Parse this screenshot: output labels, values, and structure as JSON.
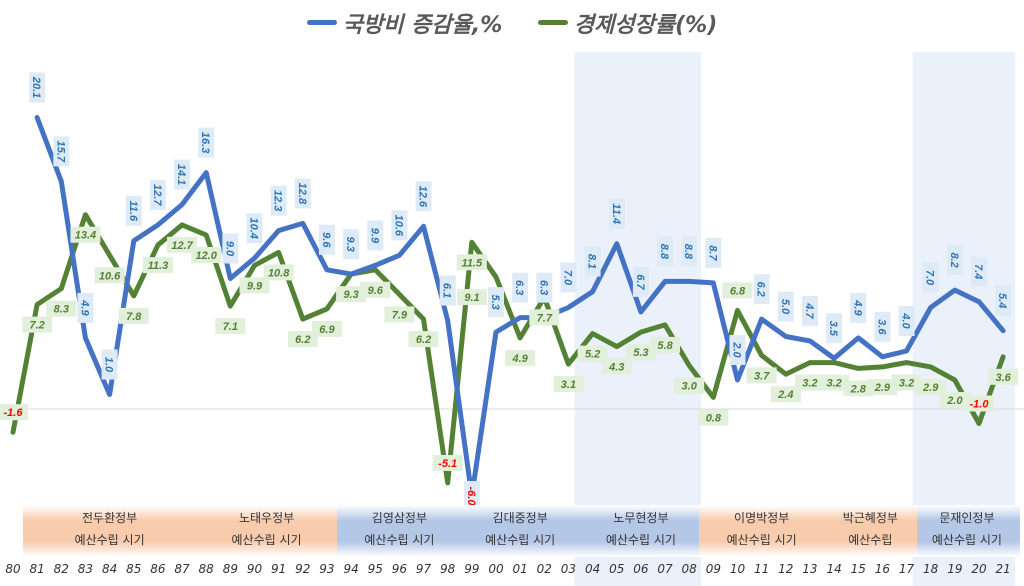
{
  "chart_data": {
    "type": "line",
    "x": [
      "80",
      "81",
      "82",
      "83",
      "84",
      "85",
      "86",
      "87",
      "88",
      "89",
      "90",
      "91",
      "92",
      "93",
      "94",
      "95",
      "96",
      "97",
      "98",
      "99",
      "00",
      "01",
      "02",
      "03",
      "04",
      "05",
      "06",
      "07",
      "08",
      "09",
      "10",
      "11",
      "12",
      "13",
      "14",
      "15",
      "16",
      "17",
      "18",
      "19",
      "20",
      "21"
    ],
    "series": [
      {
        "name": "국방비 증감율,%",
        "color": "#4472C4",
        "values": [
          null,
          20.1,
          15.7,
          4.9,
          1.0,
          11.6,
          12.7,
          14.1,
          16.3,
          9.0,
          10.4,
          12.3,
          12.8,
          9.6,
          9.3,
          9.9,
          10.6,
          12.6,
          6.1,
          -6.0,
          5.3,
          6.3,
          6.3,
          7.0,
          8.1,
          11.4,
          6.7,
          8.8,
          8.8,
          8.7,
          2.0,
          6.2,
          5.0,
          4.7,
          3.5,
          4.9,
          3.6,
          4.0,
          7.0,
          8.2,
          7.4,
          5.4
        ]
      },
      {
        "name": "경제성장률(%)",
        "color": "#548235",
        "values": [
          -1.6,
          7.2,
          8.3,
          13.4,
          10.6,
          7.8,
          11.3,
          12.7,
          12.0,
          7.1,
          9.9,
          10.8,
          6.2,
          6.9,
          9.3,
          9.6,
          7.9,
          6.2,
          -5.1,
          11.5,
          9.1,
          4.9,
          7.7,
          3.1,
          5.2,
          4.3,
          5.3,
          5.8,
          3.0,
          0.8,
          6.8,
          3.7,
          2.4,
          3.2,
          3.2,
          2.8,
          2.9,
          3.2,
          2.9,
          2.0,
          -1.0,
          3.6
        ]
      }
    ],
    "highlighted_years": [
      [
        "04",
        "08"
      ],
      [
        "18",
        "21"
      ]
    ],
    "negative_label_color": "#FF0000",
    "grid": false,
    "legend": "top"
  },
  "periods": [
    {
      "name": "전두환정부",
      "sub": "예산수립 시기",
      "from": "81",
      "to": "87",
      "color": "orange"
    },
    {
      "name": "노태우정부",
      "sub": "예산수립 시기",
      "from": "88",
      "to": "93",
      "color": "orange"
    },
    {
      "name": "김영삼정부",
      "sub": "예산수립 시기",
      "from": "94",
      "to": "98",
      "color": "blue"
    },
    {
      "name": "김대중정부",
      "sub": "예산수립 시기",
      "from": "99",
      "to": "03",
      "color": "blue"
    },
    {
      "name": "노무현정부",
      "sub": "예산수립 시기",
      "from": "04",
      "to": "08",
      "color": "blue"
    },
    {
      "name": "이명박정부",
      "sub": "예산수립 시기",
      "from": "09",
      "to": "13",
      "color": "orange"
    },
    {
      "name": "박근혜정부",
      "sub": "예산수립",
      "from": "14",
      "to": "17",
      "color": "orange"
    },
    {
      "name": "문재인정부",
      "sub": "예산수립 시기",
      "from": "18",
      "to": "21",
      "color": "blue"
    }
  ]
}
